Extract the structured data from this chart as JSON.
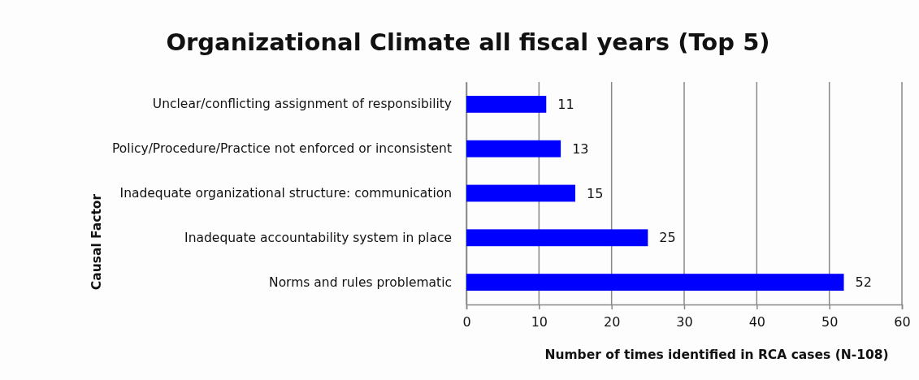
{
  "chart_data": {
    "type": "bar",
    "orientation": "horizontal",
    "title": "Organizational Climate all fiscal years (Top 5)",
    "xlabel": "Number of times identified in RCA cases (N-108)",
    "ylabel": "Causal Factor",
    "categories": [
      "Unclear/conflicting assignment of responsibility",
      "Policy/Procedure/Practice not enforced or inconsistent",
      "Inadequate organizational structure: communication",
      "Inadequate accountability system in place",
      "Norms and rules problematic"
    ],
    "values": [
      11,
      13,
      15,
      25,
      52
    ],
    "color": "#0000ff",
    "xlim": [
      0,
      60
    ],
    "xticks": [
      0,
      10,
      20,
      30,
      40,
      50,
      60
    ],
    "grid": "x",
    "data_labels": true
  }
}
